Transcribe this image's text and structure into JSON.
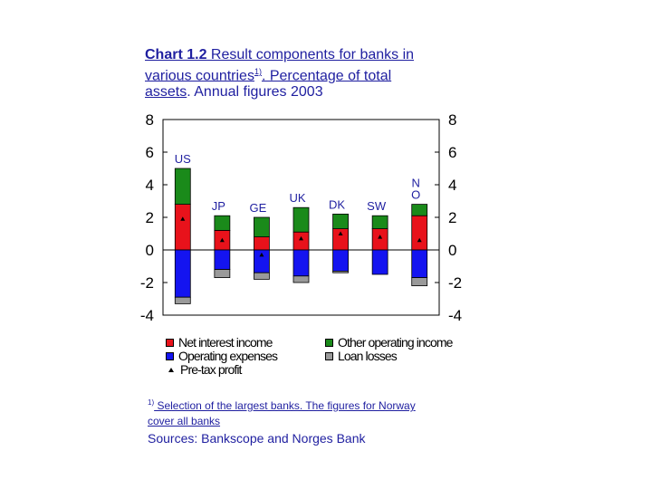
{
  "title": {
    "bold": "Chart 1.2",
    "line1": " Result components for banks in",
    "line2": "various countries",
    "sup": "1)",
    "line2b": ". Percentage of total",
    "line3": "assets",
    "line3b": ". Annual figures 2003"
  },
  "chart_data": {
    "type": "bar",
    "stacked": true,
    "categories": [
      "US",
      "JP",
      "GE",
      "UK",
      "DK",
      "SW",
      "N"
    ],
    "category_label_lines": [
      [
        "US"
      ],
      [
        "JP"
      ],
      [
        "GE"
      ],
      [
        "UK"
      ],
      [
        "DK"
      ],
      [
        "SW"
      ],
      [
        "N",
        "O"
      ]
    ],
    "ylim": [
      -4,
      8
    ],
    "yticks": [
      "8",
      "6",
      "4",
      "2",
      "0",
      "-2",
      "-4"
    ],
    "ytick_values": [
      8,
      6,
      4,
      2,
      0,
      -2,
      -4
    ],
    "series": [
      {
        "name": "Net interest income",
        "color": "#e8121b",
        "values": [
          2.8,
          1.2,
          0.8,
          1.1,
          1.3,
          1.3,
          2.1
        ]
      },
      {
        "name": "Other operating income",
        "color": "#1a8a1a",
        "values": [
          2.2,
          0.9,
          1.2,
          1.5,
          0.9,
          0.8,
          0.7
        ]
      },
      {
        "name": "Operating expenses",
        "color": "#1414f0",
        "values": [
          -2.9,
          -1.2,
          -1.4,
          -1.6,
          -1.3,
          -1.5,
          -1.7
        ]
      },
      {
        "name": "Loan losses",
        "color": "#9a9a9a",
        "values": [
          -0.4,
          -0.5,
          -0.4,
          -0.4,
          -0.1,
          0,
          -0.5
        ]
      }
    ],
    "pretax_profit": {
      "name": "Pre-tax profit",
      "values": [
        1.9,
        0.6,
        -0.3,
        0.7,
        1.0,
        0.8,
        0.6
      ]
    }
  },
  "legend": {
    "net_interest": "Net interest income",
    "other_operating": "Other operating income",
    "operating_expenses": "Operating expenses",
    "loan_losses": "Loan losses",
    "pretax": "Pre-tax profit"
  },
  "footnote": {
    "sup": "1)",
    "text": " Selection of the largest banks. The figures for Norway cover all banks"
  },
  "sources": "Sources: Bankscope and Norges Bank"
}
